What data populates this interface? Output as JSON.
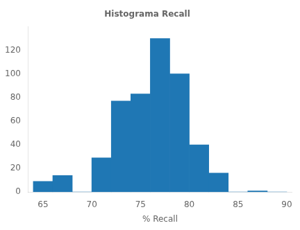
{
  "chart_data": {
    "type": "histogram",
    "title": "Histograma Recall",
    "xlabel": "% Recall",
    "bins": [
      64,
      66,
      68,
      70,
      72,
      74,
      76,
      78,
      80,
      82,
      84,
      86,
      88,
      90
    ],
    "values": [
      9,
      14,
      0,
      29,
      77,
      83,
      130,
      100,
      40,
      16,
      0,
      1,
      0
    ],
    "color": "#1f77b4",
    "xlim": [
      63.5,
      90.5
    ],
    "ylim": [
      0,
      140
    ],
    "xticks": [
      65,
      70,
      75,
      80,
      85,
      90
    ],
    "yticks": [
      0,
      20,
      40,
      60,
      80,
      100,
      120
    ],
    "grid": false
  }
}
